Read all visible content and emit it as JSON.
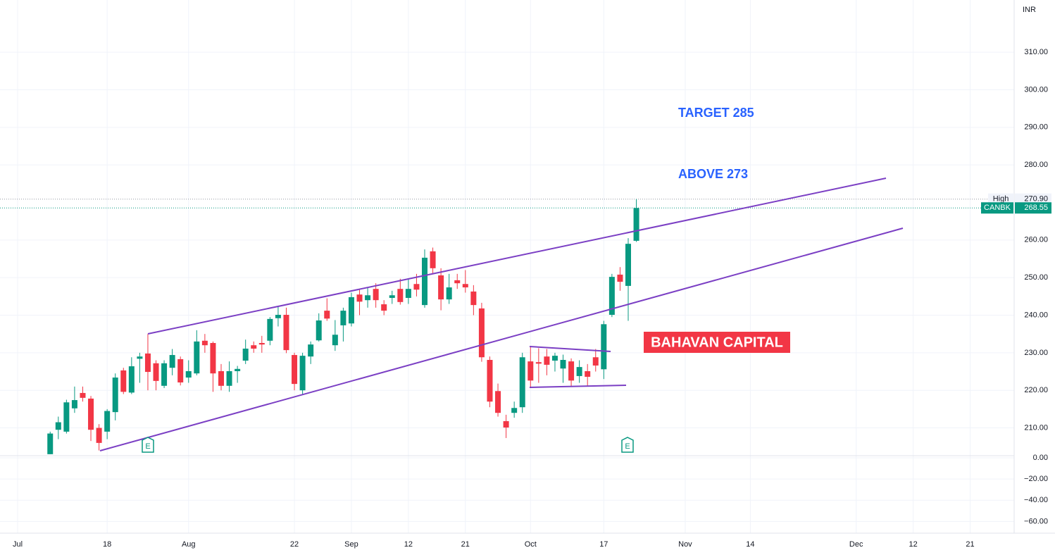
{
  "chart_data": {
    "type": "candlestick",
    "currency": "INR",
    "categories": [
      "Jul",
      null,
      null,
      null,
      null,
      null,
      null,
      null,
      null,
      null,
      null,
      "18",
      null,
      null,
      null,
      null,
      null,
      null,
      null,
      null,
      null,
      "Aug",
      null,
      null,
      null,
      null,
      null,
      null,
      null,
      null,
      null,
      null,
      null,
      null,
      "22",
      null,
      null,
      null,
      null,
      null,
      null,
      "Sep",
      null,
      null,
      null,
      null,
      null,
      null,
      "12",
      null,
      null,
      null,
      null,
      null,
      null,
      "21",
      null,
      null,
      null,
      null,
      null,
      null,
      null,
      "Oct",
      null,
      null,
      null,
      null,
      null,
      null,
      null,
      null,
      "17",
      null,
      null,
      null,
      null,
      null,
      null,
      null,
      null,
      null,
      "Nov",
      null,
      null,
      null,
      null,
      null,
      null,
      null,
      "14",
      null,
      null,
      null,
      null,
      null,
      null,
      null,
      null,
      null,
      null,
      null,
      null,
      "Dec",
      null,
      null,
      null,
      null,
      null,
      null,
      "12",
      null,
      null,
      null,
      null,
      null,
      null,
      "21",
      null,
      null,
      null,
      null,
      null
    ],
    "open": [
      null,
      null,
      null,
      null,
      203,
      209.5,
      209,
      215.2,
      219.3,
      217.8,
      210,
      209,
      214.2,
      225.3,
      219.4,
      228.4,
      229.8,
      227.2,
      221.2,
      226,
      228.3,
      223.4,
      224.5,
      233.2,
      232.6,
      225.1,
      221.2,
      225.1,
      227.9,
      232,
      232.6,
      233.2,
      239.2,
      240.1,
      229.4,
      220,
      229,
      233.3,
      241.2,
      232,
      237.3,
      237.8,
      245.5,
      244,
      247,
      242.9,
      244.6,
      247,
      244.6,
      248.3,
      242.7,
      257,
      250.6,
      244.2,
      249.3,
      248.3,
      246.3,
      241.8,
      228.1,
      219.8,
      211.8,
      214,
      215.5,
      227.7,
      227.5,
      229,
      227.9,
      225.8,
      227.7,
      223.8,
      225.1,
      228.8,
      225.6,
      240.1,
      250.8,
      247.8,
      259.8,
      null,
      null,
      null,
      null,
      null,
      null,
      null,
      null,
      null,
      null,
      null,
      null,
      null,
      null,
      null,
      null,
      null,
      null,
      null,
      null,
      null,
      null,
      null,
      null,
      null,
      null,
      null,
      null,
      null,
      null,
      null,
      null,
      null,
      null,
      null,
      null,
      null,
      null,
      null,
      null,
      null,
      null,
      null,
      null,
      null,
      null
    ],
    "high": [
      null,
      null,
      null,
      null,
      209,
      213,
      217.5,
      221,
      221,
      218.5,
      211,
      215,
      224.5,
      226,
      228.8,
      230,
      235,
      228,
      228,
      231,
      229,
      228,
      236,
      235,
      233,
      227,
      227.7,
      226.5,
      233.5,
      233,
      234.5,
      239.5,
      242.5,
      242,
      230,
      230,
      233,
      240.5,
      244.5,
      238.7,
      242,
      246,
      247,
      247.5,
      248.5,
      244,
      246.5,
      249.7,
      249.7,
      251,
      257.5,
      258,
      252.5,
      251,
      251,
      252,
      248,
      243.3,
      229,
      221.8,
      213.5,
      217,
      230,
      231.5,
      231.2,
      231,
      230,
      229.5,
      228.5,
      228,
      227,
      231,
      238.5,
      251,
      252.8,
      260.5,
      270.9,
      null,
      null,
      null,
      null,
      null,
      null,
      null,
      null,
      null,
      null,
      null,
      null,
      null,
      null,
      null,
      null,
      null,
      null,
      null,
      null,
      null,
      null,
      null,
      null,
      null,
      null,
      null,
      null,
      null,
      null,
      null,
      null,
      null,
      null,
      null,
      null,
      null,
      null,
      null,
      null,
      null,
      null,
      null,
      null,
      null,
      null
    ],
    "low": [
      null,
      null,
      null,
      null,
      203,
      207,
      208.5,
      214,
      217,
      206.5,
      204,
      207,
      212,
      219,
      219,
      222,
      220,
      220,
      220.6,
      224,
      221.3,
      222,
      224,
      230,
      219.6,
      220,
      219.6,
      222,
      227,
      230,
      230,
      232,
      237,
      229.9,
      220,
      219,
      227,
      233,
      238.5,
      230.5,
      233,
      237,
      240,
      242,
      242,
      240,
      243,
      242.8,
      243,
      245,
      242,
      251,
      241.3,
      243,
      247,
      246,
      240,
      227.6,
      215.5,
      213,
      207.3,
      212.7,
      214,
      220.6,
      222,
      224,
      225,
      222,
      221,
      222,
      221,
      225,
      223,
      239.5,
      246.5,
      238.5,
      259.5,
      null,
      null,
      null,
      null,
      null,
      null,
      null,
      null,
      null,
      null,
      null,
      null,
      null,
      null,
      null,
      null,
      null,
      null,
      null,
      null,
      null,
      null,
      null,
      null,
      null,
      null,
      null,
      null,
      null,
      null,
      null,
      null,
      null,
      null,
      null,
      null,
      null,
      null,
      null,
      null,
      null,
      null,
      null,
      null,
      null,
      null
    ],
    "close": [
      null,
      null,
      null,
      null,
      208.5,
      211.5,
      216.8,
      217.4,
      218,
      209.5,
      206,
      214.5,
      223.4,
      219.6,
      226.4,
      229,
      224.9,
      222.5,
      227.2,
      229.4,
      222.1,
      225.1,
      233,
      232,
      224.5,
      221.2,
      225.1,
      225.7,
      231.1,
      231.1,
      232.2,
      239,
      240.1,
      230.7,
      221.7,
      229.2,
      232.2,
      238.6,
      239.1,
      234.8,
      241.2,
      244.8,
      243.6,
      245.3,
      244,
      241.2,
      245.3,
      243.5,
      247,
      246.8,
      255.3,
      252.5,
      244.2,
      247.4,
      248.5,
      247.4,
      242.7,
      228.8,
      217,
      214,
      210.1,
      215.3,
      228.8,
      222.6,
      227.1,
      226.8,
      229.2,
      228.1,
      222.6,
      226.2,
      223.6,
      226.6,
      237.6,
      250.2,
      248.9,
      259,
      268.55,
      null,
      null,
      null,
      null,
      null,
      null,
      null,
      null,
      null,
      null,
      null,
      null,
      null,
      null,
      null,
      null,
      null,
      null,
      null,
      null,
      null,
      null,
      null,
      null,
      null,
      null,
      null,
      null,
      null,
      null,
      null,
      null,
      null,
      null,
      null,
      null,
      null,
      null,
      null,
      null,
      null,
      null,
      null,
      null,
      null,
      null
    ],
    "up_color": "#089981",
    "down_color": "#f23645",
    "ylim": [
      202.6,
      323.9
    ],
    "yticks": [
      {
        "value": 210,
        "label": "210.00"
      },
      {
        "value": 220,
        "label": "220.00"
      },
      {
        "value": 230,
        "label": "230.00"
      },
      {
        "value": 240,
        "label": "240.00"
      },
      {
        "value": 250,
        "label": "250.00"
      },
      {
        "value": 260,
        "label": "260.00"
      },
      {
        "value": 280,
        "label": "280.00"
      },
      {
        "value": 290,
        "label": "290.00"
      },
      {
        "value": 300,
        "label": "300.00"
      },
      {
        "value": 310,
        "label": "310.00"
      }
    ],
    "y2lim": [
      -71,
      2
    ],
    "y2ticks": [
      {
        "value": 0,
        "label": "0.00"
      },
      {
        "value": -20,
        "label": "−20.00"
      },
      {
        "value": -40,
        "label": "−40.00"
      },
      {
        "value": -60,
        "label": "−60.00"
      }
    ],
    "grid": true,
    "high_marker": {
      "label": "High",
      "value": 270.9,
      "value_label": "270.90"
    },
    "last_price": {
      "label": "CANBK",
      "value": 268.55
    },
    "annotations": [
      "TARGET 285",
      "ABOVE 273",
      "BAHAVAN CAPITAL"
    ],
    "earnings_markers": [
      "E",
      "E"
    ]
  }
}
